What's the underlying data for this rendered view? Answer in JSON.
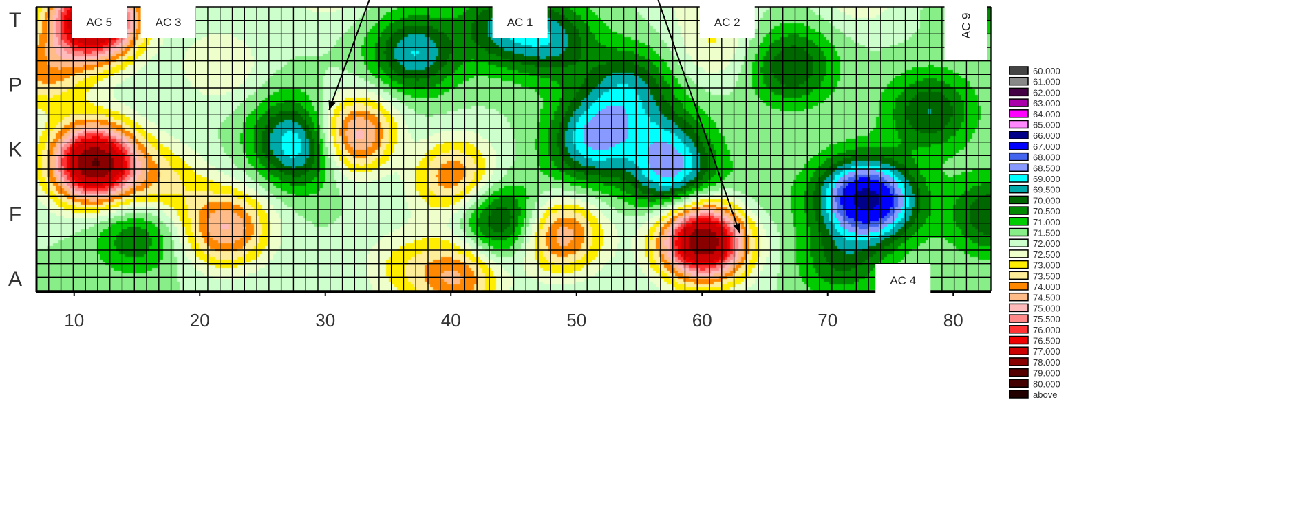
{
  "chart_data": {
    "type": "heatmap",
    "title": "",
    "xlabel": "",
    "ylabel": "",
    "x_ticks": [
      "10",
      "20",
      "30",
      "40",
      "50",
      "60",
      "70",
      "80"
    ],
    "x_tick_values": [
      10,
      20,
      30,
      40,
      50,
      60,
      70,
      80
    ],
    "xlim": [
      7,
      83
    ],
    "y_ticks": [
      "T",
      "P",
      "K",
      "F",
      "A"
    ],
    "grid": true,
    "legend_position": "right",
    "color_scale": [
      {
        "label": "60.000",
        "color": "#444444"
      },
      {
        "label": "61.000",
        "color": "#888888"
      },
      {
        "label": "62.000",
        "color": "#440044"
      },
      {
        "label": "63.000",
        "color": "#aa00aa"
      },
      {
        "label": "64.000",
        "color": "#ff00ff"
      },
      {
        "label": "65.000",
        "color": "#ff88ff"
      },
      {
        "label": "66.000",
        "color": "#000088"
      },
      {
        "label": "67.000",
        "color": "#0000ff"
      },
      {
        "label": "68.000",
        "color": "#4466ee"
      },
      {
        "label": "68.500",
        "color": "#8899ff"
      },
      {
        "label": "69.000",
        "color": "#00ffff"
      },
      {
        "label": "69.500",
        "color": "#00aaaa"
      },
      {
        "label": "70.000",
        "color": "#006600"
      },
      {
        "label": "70.500",
        "color": "#008800"
      },
      {
        "label": "71.000",
        "color": "#00cc00"
      },
      {
        "label": "71.500",
        "color": "#88ee88"
      },
      {
        "label": "72.000",
        "color": "#ccffcc"
      },
      {
        "label": "72.500",
        "color": "#eeffcc"
      },
      {
        "label": "73.000",
        "color": "#ffee00"
      },
      {
        "label": "73.500",
        "color": "#ffee99"
      },
      {
        "label": "74.000",
        "color": "#ff8800"
      },
      {
        "label": "74.500",
        "color": "#ffbb88"
      },
      {
        "label": "75.000",
        "color": "#ffbbbb"
      },
      {
        "label": "75.500",
        "color": "#ff8888"
      },
      {
        "label": "76.000",
        "color": "#ff3333"
      },
      {
        "label": "76.500",
        "color": "#ee0000"
      },
      {
        "label": "77.000",
        "color": "#cc0000"
      },
      {
        "label": "78.000",
        "color": "#880000"
      },
      {
        "label": "79.000",
        "color": "#550000"
      },
      {
        "label": "80.000",
        "color": "#440000"
      },
      {
        "label": "above",
        "color": "#220000"
      }
    ],
    "background_value": 72.0,
    "hotspots": [
      {
        "x": 11.5,
        "y": 4.0,
        "value": 79.0
      },
      {
        "x": 11.5,
        "y": 1.8,
        "value": 79.0
      },
      {
        "x": 60.0,
        "y": 0.6,
        "value": 79.0
      },
      {
        "x": 32.5,
        "y": 2.2,
        "value": 76.0
      },
      {
        "x": 22.0,
        "y": 0.8,
        "value": 75.0
      },
      {
        "x": 48.5,
        "y": 0.7,
        "value": 75.0
      },
      {
        "x": 40.0,
        "y": 1.6,
        "value": 74.5
      },
      {
        "x": 40.5,
        "y": 0.05,
        "value": 74.5
      },
      {
        "x": 7.5,
        "y": 3.2,
        "value": 74.0
      },
      {
        "x": 17.0,
        "y": 1.5,
        "value": 73.5
      },
      {
        "x": 61.0,
        "y": 3.6,
        "value": 73.0
      },
      {
        "x": 21.5,
        "y": 3.3,
        "value": 73.0
      },
      {
        "x": 30.0,
        "y": 4.6,
        "value": 73.0
      },
      {
        "x": 36.0,
        "y": 0.2,
        "value": 73.0
      },
      {
        "x": 72.5,
        "y": 4.5,
        "value": 73.0
      },
      {
        "x": 60.0,
        "y": 4.6,
        "value": 73.0
      },
      {
        "x": 44.0,
        "y": 3.9,
        "value": 70.0
      },
      {
        "x": 48.0,
        "y": 3.7,
        "value": 70.0
      },
      {
        "x": 54.0,
        "y": 3.0,
        "value": 70.0
      },
      {
        "x": 67.0,
        "y": 3.3,
        "value": 70.0
      },
      {
        "x": 78.0,
        "y": 2.6,
        "value": 70.0
      },
      {
        "x": 83.0,
        "y": 4.5,
        "value": 70.0
      },
      {
        "x": 83.0,
        "y": 1.0,
        "value": 70.0
      },
      {
        "x": 71.0,
        "y": 0.3,
        "value": 70.5
      },
      {
        "x": 35.0,
        "y": 2.0,
        "value": 71.0
      },
      {
        "x": 27.0,
        "y": 2.4,
        "value": 71.0
      },
      {
        "x": 14.8,
        "y": 0.7,
        "value": 70.5
      },
      {
        "x": 50.5,
        "y": 1.8,
        "value": 71.0
      },
      {
        "x": 57.0,
        "y": 2.2,
        "value": 70.5
      },
      {
        "x": 37.0,
        "y": 3.5,
        "value": 69.5
      },
      {
        "x": 51.5,
        "y": 2.3,
        "value": 69.5
      },
      {
        "x": 57.5,
        "y": 1.6,
        "value": 69.3
      },
      {
        "x": 74.0,
        "y": 1.2,
        "value": 69.0
      },
      {
        "x": 72.0,
        "y": 1.3,
        "value": 69.2
      },
      {
        "x": 44.0,
        "y": 0.9,
        "value": 69.5
      },
      {
        "x": 28.0,
        "y": 2.0,
        "value": 69.5
      },
      {
        "x": 63.5,
        "y": 1.2,
        "value": 71.5
      }
    ],
    "annotations": [
      {
        "label": "AC 5",
        "x": 12,
        "y": 5.0
      },
      {
        "label": "AC 3",
        "x": 17.5,
        "y": 5.0
      },
      {
        "label": "AC 1",
        "x": 45.5,
        "y": 5.0
      },
      {
        "label": "AC 2",
        "x": 62,
        "y": 5.0
      },
      {
        "label": "AC 9",
        "x": 81,
        "y": 3.9
      },
      {
        "label": "AC 4",
        "x": 76,
        "y": 0.0
      }
    ],
    "arrows": [
      {
        "from": {
          "x": 33.5,
          "y": 5.6
        },
        "to": {
          "x": 30.3,
          "y": 2.6
        }
      },
      {
        "from": {
          "x": 56.5,
          "y": 5.6
        },
        "to": {
          "x": 63.0,
          "y": 0.7
        }
      }
    ]
  }
}
